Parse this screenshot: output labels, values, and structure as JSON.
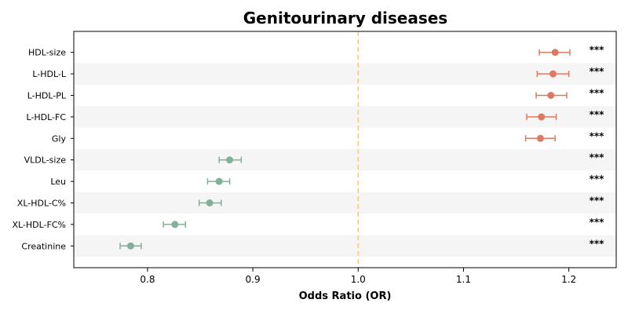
{
  "chart_data": {
    "type": "scatter",
    "title": "Genitourinary diseases",
    "xlabel": "Odds Ratio (OR)",
    "ylabel": "",
    "xlim": [
      0.73,
      1.245
    ],
    "xticks": [
      0.8,
      0.9,
      1.0,
      1.1,
      1.2
    ],
    "xtick_labels": [
      "0.8",
      "0.9",
      "1.0",
      "1.1",
      "1.2"
    ],
    "reference_line": 1.0,
    "grid": false,
    "alternating_row_shading": true,
    "colors": {
      "positive": "#dc7a62",
      "negative": "#82b09a",
      "reference_line": "#f5c986",
      "row_shade": "#f5f5f5"
    },
    "rows": [
      {
        "label": "HDL-size",
        "or": 1.187,
        "ci_low": 1.172,
        "ci_high": 1.201,
        "sig": "***"
      },
      {
        "label": "L-HDL-L",
        "or": 1.185,
        "ci_low": 1.17,
        "ci_high": 1.2,
        "sig": "***"
      },
      {
        "label": "L-HDL-PL",
        "or": 1.183,
        "ci_low": 1.169,
        "ci_high": 1.198,
        "sig": "***"
      },
      {
        "label": "L-HDL-FC",
        "or": 1.174,
        "ci_low": 1.16,
        "ci_high": 1.188,
        "sig": "***"
      },
      {
        "label": "Gly",
        "or": 1.173,
        "ci_low": 1.159,
        "ci_high": 1.187,
        "sig": "***"
      },
      {
        "label": "VLDL-size",
        "or": 0.878,
        "ci_low": 0.868,
        "ci_high": 0.889,
        "sig": "***"
      },
      {
        "label": "Leu",
        "or": 0.868,
        "ci_low": 0.857,
        "ci_high": 0.878,
        "sig": "***"
      },
      {
        "label": "XL-HDL-C%",
        "or": 0.859,
        "ci_low": 0.849,
        "ci_high": 0.87,
        "sig": "***"
      },
      {
        "label": "XL-HDL-FC%",
        "or": 0.826,
        "ci_low": 0.815,
        "ci_high": 0.836,
        "sig": "***"
      },
      {
        "label": "Creatinine",
        "or": 0.784,
        "ci_low": 0.774,
        "ci_high": 0.794,
        "sig": "***"
      }
    ]
  }
}
